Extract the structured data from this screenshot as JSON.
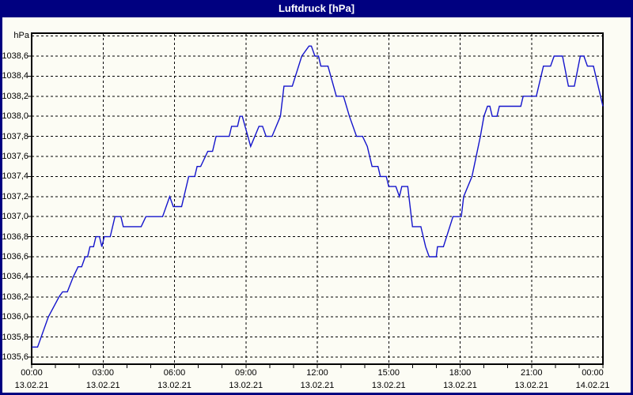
{
  "window": {
    "title": "Luftdruck [hPa]"
  },
  "colors": {
    "titlebar_bg": "#000080",
    "window_border": "#000080",
    "background": "#fcfcf4",
    "title_text": "#ffffff",
    "grid": "#000000",
    "axis_text": "#000000",
    "line": "#1414cc"
  },
  "chart_data": {
    "type": "line",
    "title": "Luftdruck [hPa]",
    "xlabel": "",
    "ylabel": "hPa",
    "y_unit_label": "hPa",
    "grid": true,
    "legend_position": "none",
    "ylim": [
      1035.6,
      1038.8
    ],
    "y_gridline_step": 0.2,
    "xlim_hours": [
      0,
      24
    ],
    "x_gridline_step_hours": 3,
    "x_minor_tick_step_hours": 1,
    "y_ticks": [
      {
        "value": 1035.6,
        "label": "1035,6"
      },
      {
        "value": 1035.8,
        "label": "1035,8"
      },
      {
        "value": 1036.0,
        "label": "1036,0"
      },
      {
        "value": 1036.2,
        "label": "1036,2"
      },
      {
        "value": 1036.4,
        "label": "1036,4"
      },
      {
        "value": 1036.6,
        "label": "1036,6"
      },
      {
        "value": 1036.8,
        "label": "1036,8"
      },
      {
        "value": 1037.0,
        "label": "1037,0"
      },
      {
        "value": 1037.2,
        "label": "1037,2"
      },
      {
        "value": 1037.4,
        "label": "1037,4"
      },
      {
        "value": 1037.6,
        "label": "1037,6"
      },
      {
        "value": 1037.8,
        "label": "1037,8"
      },
      {
        "value": 1038.0,
        "label": "1038,0"
      },
      {
        "value": 1038.2,
        "label": "1038,2"
      },
      {
        "value": 1038.4,
        "label": "1038,4"
      },
      {
        "value": 1038.6,
        "label": "1038,6"
      }
    ],
    "x_ticks": [
      {
        "hour": 0,
        "time": "00:00",
        "date": "13.02.21"
      },
      {
        "hour": 3,
        "time": "03:00",
        "date": "13.02.21"
      },
      {
        "hour": 6,
        "time": "06:00",
        "date": "13.02.21"
      },
      {
        "hour": 9,
        "time": "09:00",
        "date": "13.02.21"
      },
      {
        "hour": 12,
        "time": "12:00",
        "date": "13.02.21"
      },
      {
        "hour": 15,
        "time": "15:00",
        "date": "13.02.21"
      },
      {
        "hour": 18,
        "time": "18:00",
        "date": "13.02.21"
      },
      {
        "hour": 21,
        "time": "21:00",
        "date": "13.02.21"
      },
      {
        "hour": 24,
        "time": "00:00",
        "date": "14.02.21"
      }
    ],
    "series": [
      {
        "name": "Luftdruck",
        "unit": "hPa",
        "points": [
          [
            0,
            1035.7
          ],
          [
            0.25,
            1035.7
          ],
          [
            0.7,
            1036.0
          ],
          [
            1.15,
            1036.2
          ],
          [
            1.3,
            1036.25
          ],
          [
            1.5,
            1036.25
          ],
          [
            1.75,
            1036.4
          ],
          [
            1.95,
            1036.5
          ],
          [
            2.1,
            1036.5
          ],
          [
            2.25,
            1036.6
          ],
          [
            2.35,
            1036.6
          ],
          [
            2.45,
            1036.7
          ],
          [
            2.6,
            1036.7
          ],
          [
            2.7,
            1036.8
          ],
          [
            2.85,
            1036.8
          ],
          [
            2.95,
            1036.7
          ],
          [
            3.05,
            1036.8
          ],
          [
            3.3,
            1036.8
          ],
          [
            3.5,
            1037.0
          ],
          [
            3.75,
            1037.0
          ],
          [
            3.85,
            1036.9
          ],
          [
            4.6,
            1036.9
          ],
          [
            4.8,
            1037.0
          ],
          [
            5.5,
            1037.0
          ],
          [
            5.8,
            1037.2
          ],
          [
            5.95,
            1037.1
          ],
          [
            6.3,
            1037.1
          ],
          [
            6.6,
            1037.4
          ],
          [
            6.85,
            1037.4
          ],
          [
            6.95,
            1037.5
          ],
          [
            7.1,
            1037.5
          ],
          [
            7.3,
            1037.6
          ],
          [
            7.4,
            1037.65
          ],
          [
            7.6,
            1037.65
          ],
          [
            7.75,
            1037.8
          ],
          [
            8.3,
            1037.8
          ],
          [
            8.4,
            1037.9
          ],
          [
            8.65,
            1037.9
          ],
          [
            8.75,
            1038.0
          ],
          [
            8.85,
            1038.0
          ],
          [
            9.2,
            1037.7
          ],
          [
            9.55,
            1037.9
          ],
          [
            9.7,
            1037.9
          ],
          [
            9.85,
            1037.8
          ],
          [
            10.1,
            1037.8
          ],
          [
            10.45,
            1038.0
          ],
          [
            10.6,
            1038.3
          ],
          [
            10.95,
            1038.3
          ],
          [
            11.35,
            1038.6
          ],
          [
            11.65,
            1038.7
          ],
          [
            11.75,
            1038.7
          ],
          [
            11.9,
            1038.6
          ],
          [
            12.05,
            1038.6
          ],
          [
            12.15,
            1038.5
          ],
          [
            12.45,
            1038.5
          ],
          [
            12.8,
            1038.2
          ],
          [
            13.1,
            1038.2
          ],
          [
            13.35,
            1038.0
          ],
          [
            13.65,
            1037.8
          ],
          [
            13.9,
            1037.8
          ],
          [
            14.1,
            1037.7
          ],
          [
            14.3,
            1037.5
          ],
          [
            14.55,
            1037.5
          ],
          [
            14.65,
            1037.4
          ],
          [
            14.9,
            1037.4
          ],
          [
            15.0,
            1037.3
          ],
          [
            15.3,
            1037.3
          ],
          [
            15.45,
            1037.2
          ],
          [
            15.55,
            1037.3
          ],
          [
            15.8,
            1037.3
          ],
          [
            16.0,
            1036.9
          ],
          [
            16.35,
            1036.9
          ],
          [
            16.45,
            1036.8
          ],
          [
            16.55,
            1036.7
          ],
          [
            16.7,
            1036.6
          ],
          [
            17.0,
            1036.6
          ],
          [
            17.05,
            1036.7
          ],
          [
            17.3,
            1036.7
          ],
          [
            17.7,
            1037.0
          ],
          [
            18.05,
            1037.0
          ],
          [
            18.15,
            1037.2
          ],
          [
            18.5,
            1037.4
          ],
          [
            18.85,
            1037.8
          ],
          [
            19.0,
            1038.0
          ],
          [
            19.15,
            1038.1
          ],
          [
            19.25,
            1038.1
          ],
          [
            19.35,
            1038.0
          ],
          [
            19.55,
            1038.0
          ],
          [
            19.65,
            1038.1
          ],
          [
            20.55,
            1038.1
          ],
          [
            20.65,
            1038.2
          ],
          [
            21.2,
            1038.2
          ],
          [
            21.5,
            1038.5
          ],
          [
            21.8,
            1038.5
          ],
          [
            21.95,
            1038.6
          ],
          [
            22.3,
            1038.6
          ],
          [
            22.55,
            1038.3
          ],
          [
            22.8,
            1038.3
          ],
          [
            23.05,
            1038.6
          ],
          [
            23.2,
            1038.6
          ],
          [
            23.35,
            1038.5
          ],
          [
            23.6,
            1038.5
          ],
          [
            24.0,
            1038.1
          ]
        ]
      }
    ]
  }
}
